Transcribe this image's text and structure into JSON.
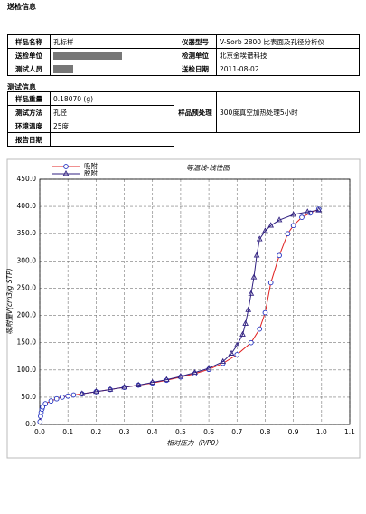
{
  "sample_info": {
    "title": "送检信息",
    "rows": [
      {
        "label": "样品名称",
        "value": "孔标样",
        "label2": "仪器型号",
        "value2": "V-Sorb 2800   比表面及孔径分析仪"
      },
      {
        "label": "送检单位",
        "label2": "检测单位",
        "value2": "北京金埃谱科技"
      },
      {
        "label": "测试人员",
        "label2": "送检日期",
        "value2": "2011-08-02"
      }
    ]
  },
  "test_info": {
    "title": "测试信息",
    "rows": [
      {
        "label": "样品重量",
        "value": "0.18070 (g)"
      },
      {
        "label": "测试方法",
        "value": "孔径"
      },
      {
        "label": "环境温度",
        "value": "25度"
      },
      {
        "label": "报告日期"
      }
    ],
    "pretreatment": {
      "label": "样品预处理",
      "value": "300度真空加热处理5小时"
    }
  },
  "chart_data": {
    "type": "line",
    "title": "等温线-线性图",
    "x_label": "相对压力（P/P0）",
    "y_label": "吸附量V(cm3/g STP)",
    "xlim": [
      0,
      1.1
    ],
    "ylim": [
      0,
      450
    ],
    "grid": true,
    "xticks": [
      {
        "value": 0,
        "label": "0.0"
      },
      0.1,
      0.2,
      0.3,
      0.4,
      0.5,
      0.6,
      0.7,
      0.8,
      0.9,
      {
        "value": 1,
        "label": "1.0"
      },
      1.1
    ],
    "yticks": [
      {
        "value": 0,
        "label": "0.0"
      },
      {
        "value": 50,
        "label": "50.0"
      },
      {
        "value": 100,
        "label": "100.0"
      },
      {
        "value": 150,
        "label": "150.0"
      },
      {
        "value": 200,
        "label": "200.0"
      },
      {
        "value": 250,
        "label": "250.0"
      },
      {
        "value": 300,
        "label": "300.0"
      },
      {
        "value": 350,
        "label": "350.0"
      },
      {
        "value": 400,
        "label": "400.0"
      },
      {
        "value": 450,
        "label": "450.0"
      }
    ],
    "series": [
      {
        "name": "吸附",
        "color": "#e02020",
        "marker_color": "#2030c0",
        "marker": "circle",
        "x": [
          0.001,
          0.003,
          0.005,
          0.008,
          0.01,
          0.02,
          0.04,
          0.06,
          0.08,
          0.1,
          0.12,
          0.15,
          0.2,
          0.25,
          0.3,
          0.35,
          0.4,
          0.45,
          0.5,
          0.55,
          0.6,
          0.65,
          0.7,
          0.75,
          0.78,
          0.8,
          0.82,
          0.85,
          0.88,
          0.9,
          0.93,
          0.96,
          0.99
        ],
        "values": [
          5,
          15,
          22,
          28,
          32,
          38,
          43,
          47,
          50,
          52,
          54,
          56,
          60,
          64,
          68,
          72,
          76,
          81,
          87,
          93,
          101,
          112,
          128,
          150,
          175,
          205,
          260,
          310,
          350,
          365,
          380,
          388,
          395
        ]
      },
      {
        "name": "脱附",
        "color": "#302080",
        "marker_color": "#302080",
        "marker": "triangle",
        "x": [
          0.99,
          0.95,
          0.9,
          0.85,
          0.82,
          0.8,
          0.78,
          0.77,
          0.76,
          0.75,
          0.74,
          0.73,
          0.72,
          0.7,
          0.68,
          0.65,
          0.6,
          0.55,
          0.5,
          0.45,
          0.4,
          0.35,
          0.3,
          0.25,
          0.2,
          0.15
        ],
        "values": [
          393,
          390,
          385,
          375,
          365,
          355,
          340,
          310,
          270,
          240,
          210,
          185,
          165,
          145,
          130,
          115,
          103,
          95,
          88,
          82,
          77,
          72,
          68,
          64,
          60,
          56
        ]
      }
    ]
  }
}
